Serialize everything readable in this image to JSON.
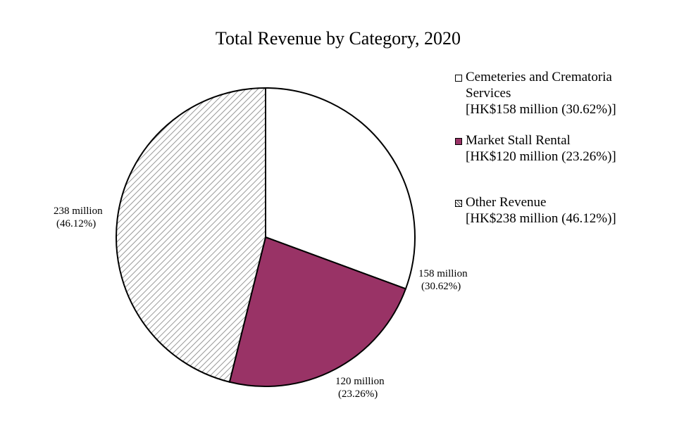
{
  "chart_data": {
    "type": "pie",
    "title": "Total Revenue by Category, 2020",
    "slices": [
      {
        "name": "Cemeteries and Crematoria Services",
        "value": 158,
        "percent": 30.62,
        "label_value": "158 million",
        "label_percent": "(30.62%)",
        "legend_detail": "[HK$158 million (30.62%)]",
        "color": "#ffffff",
        "fill": "solid"
      },
      {
        "name": "Market Stall Rental",
        "value": 120,
        "percent": 23.26,
        "label_value": "120 million",
        "label_percent": "(23.26%)",
        "legend_detail": "[HK$120 million (23.26%)]",
        "color": "#993366",
        "fill": "solid"
      },
      {
        "name": "Other Revenue",
        "value": 238,
        "percent": 46.12,
        "label_value": "238 million",
        "label_percent": "(46.12%)",
        "legend_detail": "[HK$238 million (46.12%)]",
        "color": "#808080",
        "fill": "diagonal-hatch"
      }
    ],
    "start_angle": "12 o'clock",
    "direction": "clockwise",
    "legend_position": "right"
  }
}
